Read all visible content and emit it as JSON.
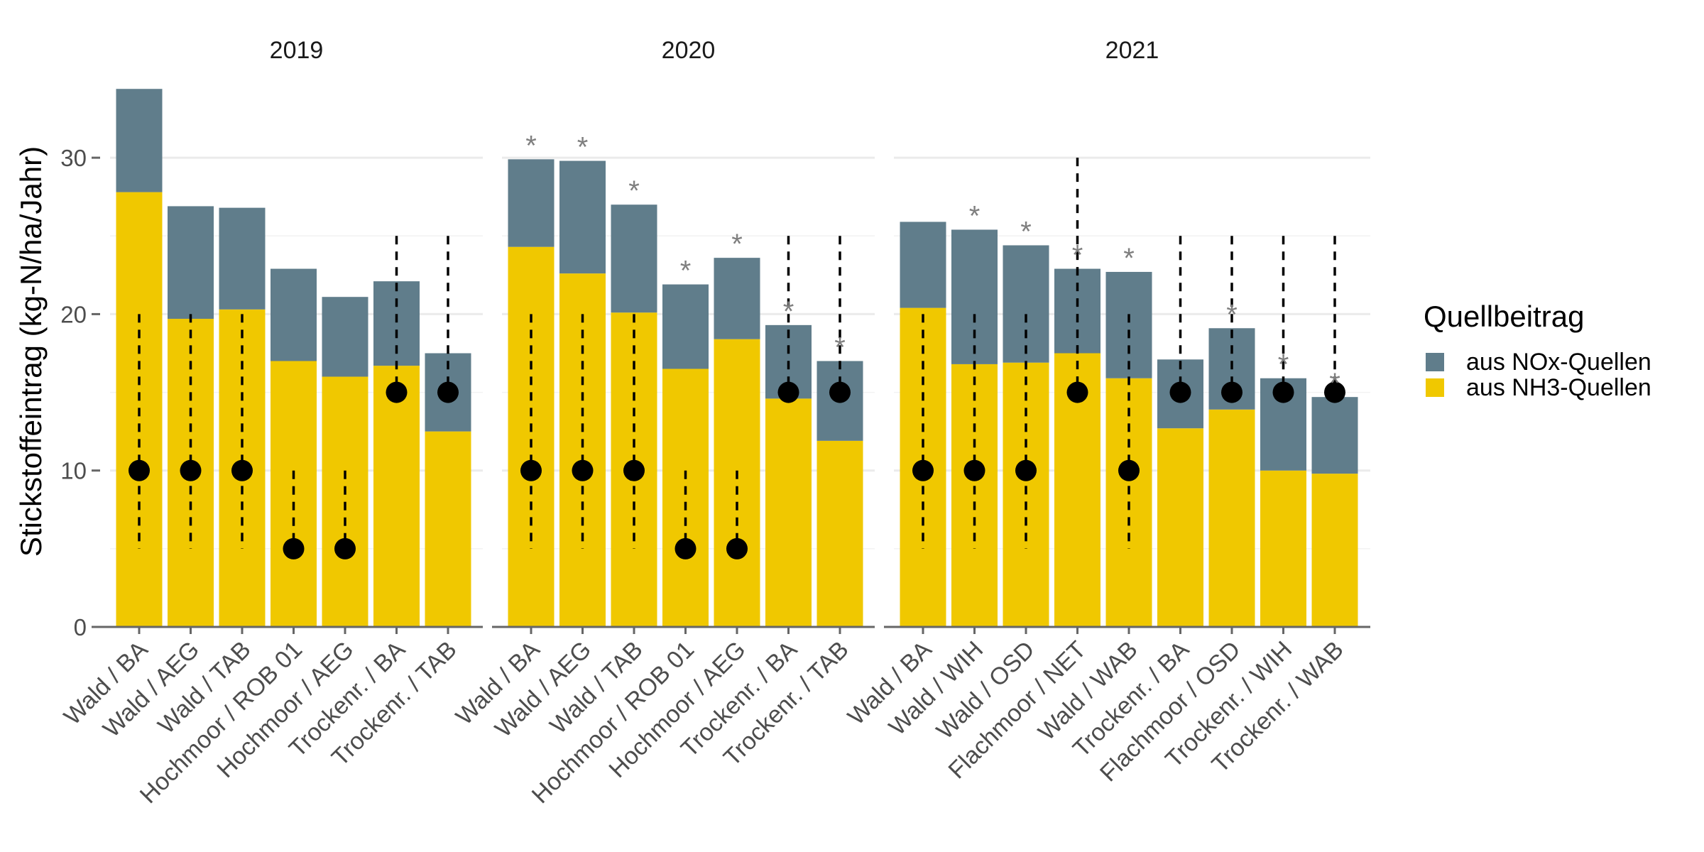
{
  "chart_data": {
    "type": "bar",
    "stacked": true,
    "ylabel": "Stickstoffeintrag (kg-N/ha/Jahr)",
    "ylim": [
      0,
      35
    ],
    "yticks": [
      0,
      10,
      20,
      30
    ],
    "grid": true,
    "legend": {
      "title": "Quellbeitrag",
      "placement": "right",
      "items": [
        {
          "label": "aus NOx-Quellen",
          "color": "#607d8b"
        },
        {
          "label": "aus NH3-Quellen",
          "color": "#f0c800"
        }
      ]
    },
    "colors": {
      "nox": "#607d8b",
      "nh3": "#f0c800",
      "marker": "#000000",
      "star": "#7f7f7f"
    },
    "marker_symbol": "*",
    "panels": [
      {
        "title": "2019",
        "categories": [
          "Wald / BA",
          "Wald / AEG",
          "Wald / TAB",
          "Hochmoor / ROB 01",
          "Hochmoor / AEG",
          "Trockenr. / BA",
          "Trockenr. / TAB"
        ],
        "nh3": [
          27.8,
          19.7,
          20.3,
          17.0,
          16.0,
          16.7,
          12.5
        ],
        "nox": [
          6.6,
          7.2,
          6.5,
          5.9,
          5.1,
          5.4,
          5.0
        ],
        "critical_load": [
          10,
          10,
          10,
          5,
          5,
          15,
          15
        ],
        "cl_range": [
          [
            5,
            20
          ],
          [
            5,
            20
          ],
          [
            5,
            20
          ],
          [
            5,
            10
          ],
          [
            5,
            10
          ],
          [
            15,
            25
          ],
          [
            15,
            25
          ]
        ],
        "exceed_flag": [
          false,
          false,
          false,
          false,
          false,
          false,
          false
        ]
      },
      {
        "title": "2020",
        "categories": [
          "Wald / BA",
          "Wald / AEG",
          "Wald / TAB",
          "Hochmoor / ROB 01",
          "Hochmoor / AEG",
          "Trockenr. / BA",
          "Trockenr. / TAB"
        ],
        "nh3": [
          24.3,
          22.6,
          20.1,
          16.5,
          18.4,
          14.6,
          11.9
        ],
        "nox": [
          5.6,
          7.2,
          6.9,
          5.4,
          5.2,
          4.7,
          5.1
        ],
        "critical_load": [
          10,
          10,
          10,
          5,
          5,
          15,
          15
        ],
        "cl_range": [
          [
            5,
            20
          ],
          [
            5,
            20
          ],
          [
            5,
            20
          ],
          [
            5,
            10
          ],
          [
            5,
            10
          ],
          [
            15,
            25
          ],
          [
            15,
            25
          ]
        ],
        "exceed_flag": [
          true,
          true,
          true,
          true,
          true,
          true,
          true
        ]
      },
      {
        "title": "2021",
        "categories": [
          "Wald / BA",
          "Wald / WIH",
          "Wald / OSD",
          "Flachmoor / NET",
          "Wald / WAB",
          "Trockenr. / BA",
          "Flachmoor / OSD",
          "Trockenr. / WIH",
          "Trockenr. / WAB"
        ],
        "nh3": [
          20.4,
          16.8,
          16.9,
          17.5,
          15.9,
          12.7,
          13.9,
          10.0,
          9.8
        ],
        "nox": [
          5.5,
          8.6,
          7.5,
          5.4,
          6.8,
          4.4,
          5.2,
          5.9,
          4.9
        ],
        "critical_load": [
          10,
          10,
          10,
          15,
          10,
          15,
          15,
          15,
          15
        ],
        "cl_range": [
          [
            5,
            20
          ],
          [
            5,
            20
          ],
          [
            5,
            20
          ],
          [
            15,
            30
          ],
          [
            5,
            20
          ],
          [
            15,
            25
          ],
          [
            15,
            25
          ],
          [
            15,
            25
          ],
          [
            15,
            25
          ]
        ],
        "exceed_flag": [
          false,
          true,
          true,
          true,
          true,
          false,
          true,
          true,
          true
        ]
      }
    ]
  }
}
